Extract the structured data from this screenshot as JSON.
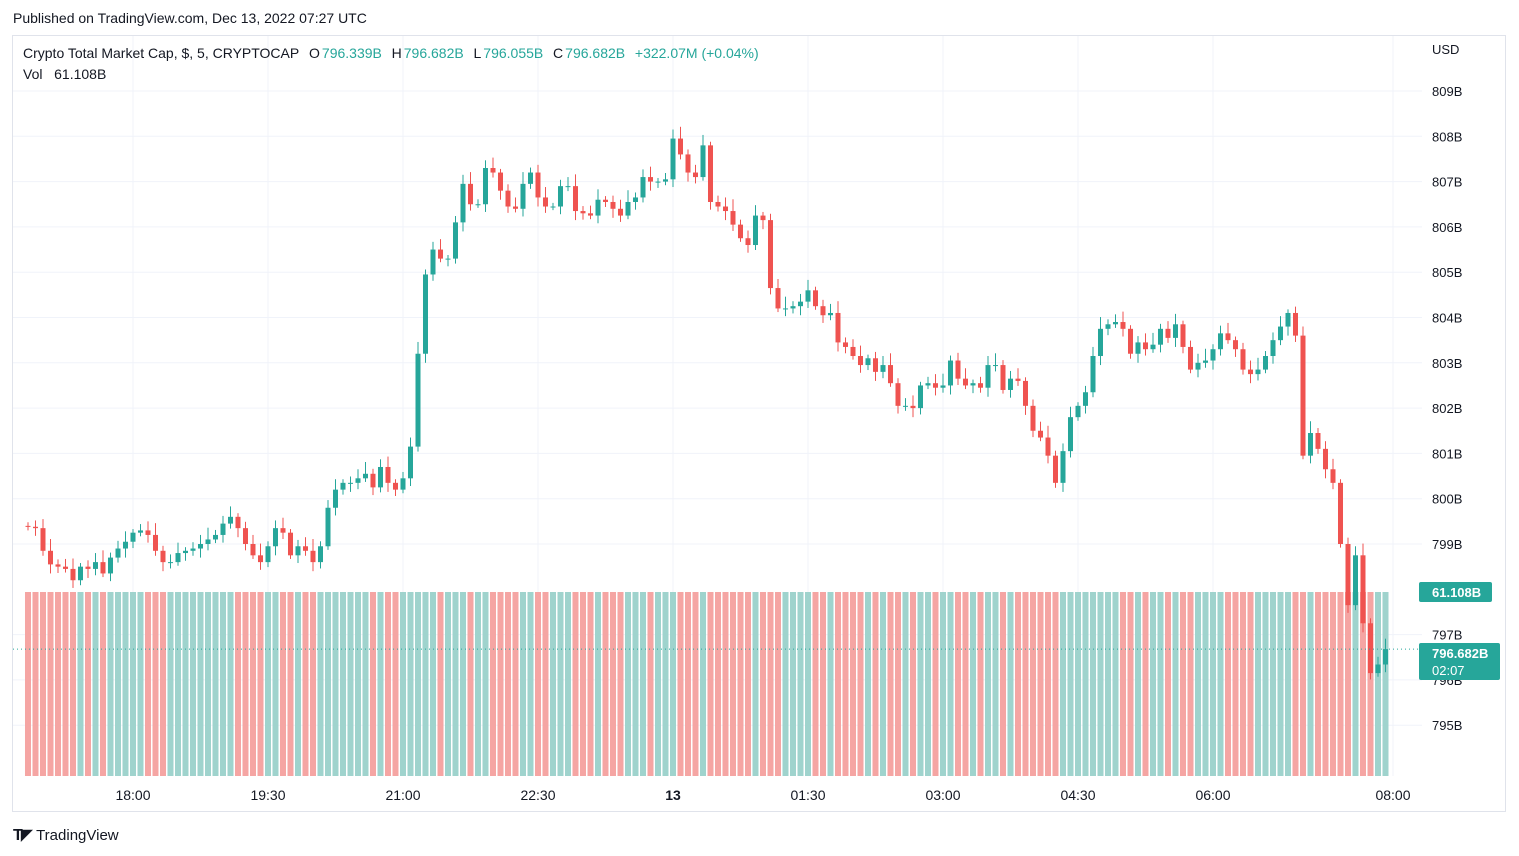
{
  "header": {
    "published": "Published on TradingView.com, Dec 13, 2022 07:27 UTC"
  },
  "legend": {
    "symbol": "Crypto Total Market Cap, $, 5, CRYPTOCAP",
    "o_label": "O",
    "o_value": "796.339B",
    "h_label": "H",
    "h_value": "796.682B",
    "l_label": "L",
    "l_value": "796.055B",
    "c_label": "C",
    "c_value": "796.682B",
    "change": "+322.07M (+0.04%)",
    "vol_label": "Vol",
    "vol_value": "61.108B"
  },
  "axis": {
    "currency": "USD",
    "price_badge_value": "796.682B",
    "price_badge_countdown": "02:07",
    "volume_badge": "61.108B"
  },
  "footer": {
    "brand": "TradingView",
    "brand_icon": "tradingview-logo-icon"
  },
  "colors": {
    "up": "#26a69a",
    "down": "#ef5350",
    "up_vol": "#9fd3cd",
    "down_vol": "#f5a5a3",
    "grid": "#f0f3fa"
  },
  "chart_data": {
    "type": "candlestick",
    "title": "Crypto Total Market Cap, $, 5, CRYPTOCAP",
    "ylabel": "USD",
    "ylim": [
      793.9,
      810.6
    ],
    "y_ticks": [
      "795B",
      "796B",
      "797B",
      "799B",
      "800B",
      "801B",
      "802B",
      "803B",
      "804B",
      "805B",
      "806B",
      "807B",
      "808B",
      "809B"
    ],
    "y_tick_values": [
      795,
      796,
      797,
      799,
      800,
      801,
      802,
      803,
      804,
      805,
      806,
      807,
      808,
      809
    ],
    "x_ticks": [
      {
        "label": "18:00",
        "hour": 18.0
      },
      {
        "label": "19:30",
        "hour": 19.5
      },
      {
        "label": "21:00",
        "hour": 21.0
      },
      {
        "label": "22:30",
        "hour": 22.5
      },
      {
        "label": "13",
        "hour": 24.0
      },
      {
        "label": "01:30",
        "hour": 25.5
      },
      {
        "label": "03:00",
        "hour": 27.0
      },
      {
        "label": "04:30",
        "hour": 28.5
      },
      {
        "label": "06:00",
        "hour": 30.0
      },
      {
        "label": "08:00",
        "hour": 32.0
      }
    ],
    "start_hour": 16.8333,
    "interval_minutes": 5,
    "closes": [
      799.38,
      799.35,
      798.85,
      798.55,
      798.5,
      798.45,
      798.2,
      798.5,
      798.45,
      798.6,
      798.35,
      798.7,
      798.9,
      799.05,
      799.25,
      799.3,
      799.2,
      798.85,
      798.6,
      798.6,
      798.8,
      798.85,
      798.9,
      799.0,
      799.1,
      799.2,
      799.45,
      799.6,
      799.35,
      799.0,
      798.75,
      798.6,
      798.95,
      799.35,
      799.25,
      798.75,
      798.95,
      798.85,
      798.6,
      798.95,
      799.8,
      800.2,
      800.35,
      800.35,
      800.45,
      800.55,
      800.25,
      800.7,
      800.35,
      800.2,
      800.45,
      801.15,
      803.2,
      804.95,
      805.5,
      805.3,
      805.3,
      806.1,
      806.95,
      806.5,
      806.5,
      807.3,
      807.2,
      806.8,
      806.45,
      806.4,
      806.95,
      807.2,
      806.65,
      806.45,
      806.45,
      806.9,
      806.9,
      806.35,
      806.3,
      806.25,
      806.6,
      806.55,
      806.4,
      806.25,
      806.55,
      806.65,
      807.1,
      807.0,
      807.0,
      807.05,
      807.95,
      807.6,
      807.2,
      807.1,
      807.8,
      806.55,
      806.45,
      806.35,
      806.05,
      805.75,
      805.6,
      806.25,
      806.15,
      804.65,
      804.2,
      804.2,
      804.25,
      804.35,
      804.6,
      804.25,
      804.05,
      804.1,
      803.45,
      803.35,
      803.15,
      802.95,
      803.1,
      802.8,
      802.95,
      802.55,
      802.05,
      802.05,
      802.0,
      802.5,
      802.55,
      802.45,
      802.5,
      803.05,
      802.65,
      802.5,
      802.55,
      802.45,
      802.95,
      802.95,
      802.4,
      802.65,
      802.6,
      802.05,
      801.5,
      801.35,
      800.95,
      800.35,
      801.05,
      801.8,
      802.05,
      802.35,
      803.15,
      803.75,
      803.85,
      803.9,
      803.75,
      803.2,
      803.45,
      803.3,
      803.4,
      803.75,
      803.55,
      803.85,
      803.35,
      802.85,
      803.0,
      803.05,
      803.3,
      803.65,
      803.5,
      803.3,
      802.85,
      802.75,
      802.85,
      803.15,
      803.5,
      803.8,
      804.1,
      803.6,
      800.95,
      801.45,
      801.1,
      800.65,
      800.35,
      799.0,
      797.65,
      798.75,
      797.25,
      796.15,
      796.34,
      796.68
    ]
  }
}
